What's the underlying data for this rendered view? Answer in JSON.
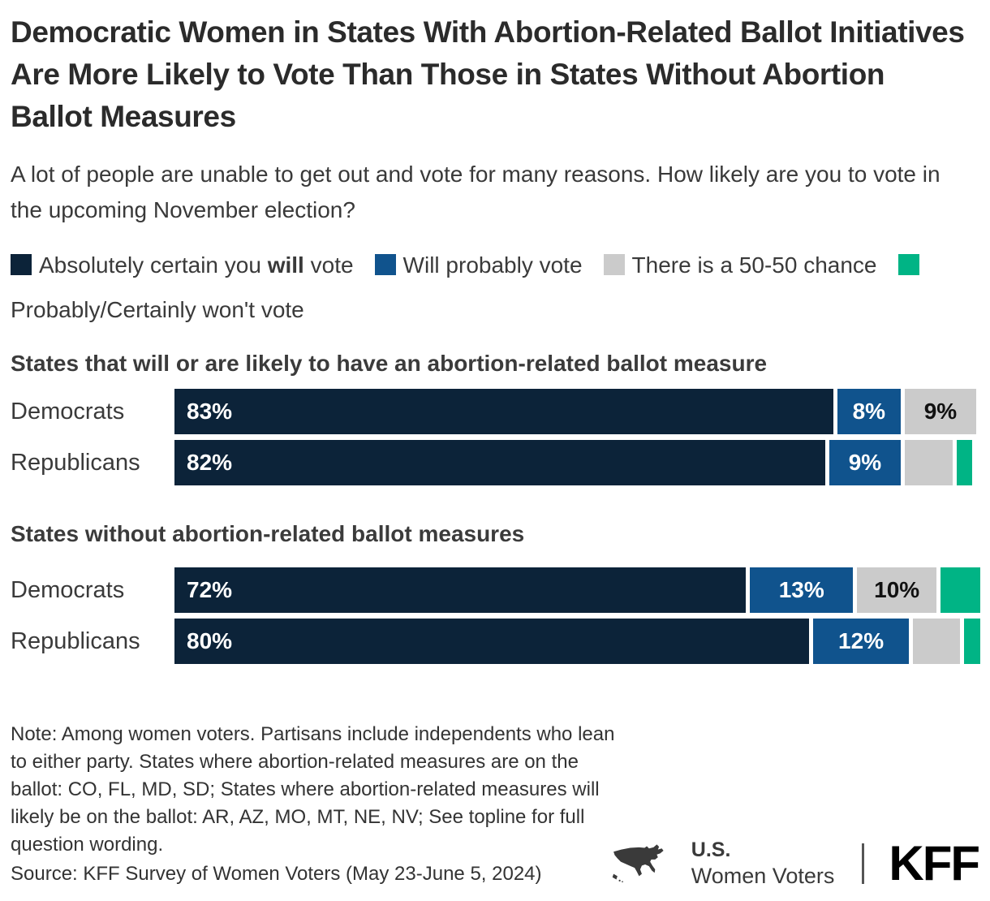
{
  "title": "Democratic Women in States With Abortion-Related Ballot Initiatives Are More Likely to Vote Than Those in States Without Abortion Ballot Measures",
  "subtitle": "A lot of people are unable to get out and vote for many reasons. How likely are you to vote in the upcoming November election?",
  "legend": {
    "items": [
      {
        "pre": "Absolutely certain you ",
        "bold": "will",
        "post": " vote",
        "color": "#0c2339"
      },
      {
        "text": "Will probably vote",
        "color": "#10538d"
      },
      {
        "text": "There is a 50-50 chance",
        "color": "#cbcbcb"
      },
      {
        "text": "Probably/Certainly won't vote",
        "color": "#00b485"
      }
    ]
  },
  "chart_data": {
    "type": "bar",
    "variant": "horizontal-stacked",
    "unit": "percent",
    "xlim": [
      0,
      100
    ],
    "legend_position": "top",
    "series_names": [
      "Absolutely certain you will vote",
      "Will probably vote",
      "There is a 50-50 chance",
      "Probably/Certainly won't vote"
    ],
    "colors": [
      "#0c2339",
      "#10538d",
      "#cbcbcb",
      "#00b485"
    ],
    "groups": [
      {
        "title": "States that will or are likely to have an abortion-related ballot measure",
        "rows": [
          {
            "label": "Democrats",
            "segments": [
              {
                "value": 83,
                "label": "83%"
              },
              {
                "value": 8,
                "label": "8%"
              },
              {
                "value": 9,
                "label": "9%"
              },
              {
                "value": 0,
                "label": ""
              }
            ]
          },
          {
            "label": "Republicans",
            "segments": [
              {
                "value": 82,
                "label": "82%"
              },
              {
                "value": 9,
                "label": "9%"
              },
              {
                "value": 6,
                "label": ""
              },
              {
                "value": 2,
                "label": ""
              }
            ]
          }
        ]
      },
      {
        "title": "States without abortion-related ballot measures",
        "rows": [
          {
            "label": "Democrats",
            "segments": [
              {
                "value": 72,
                "label": "72%"
              },
              {
                "value": 13,
                "label": "13%"
              },
              {
                "value": 10,
                "label": "10%"
              },
              {
                "value": 5,
                "label": ""
              }
            ]
          },
          {
            "label": "Republicans",
            "segments": [
              {
                "value": 80,
                "label": "80%"
              },
              {
                "value": 12,
                "label": "12%"
              },
              {
                "value": 6,
                "label": ""
              },
              {
                "value": 2,
                "label": ""
              }
            ]
          }
        ]
      }
    ]
  },
  "note": "Note: Among women voters. Partisans include independents who lean to either party. States where abortion-related measures are on the ballot: CO, FL, MD, SD; States where abortion-related measures will likely be on the ballot: AR, AZ, MO, MT, NE, NV; See topline for full question wording.",
  "source": "Source: KFF Survey of Women Voters (May 23-June 5, 2024)",
  "footer": {
    "program_top": "U.S.",
    "program_bottom": "Women Voters",
    "logo": "KFF"
  }
}
